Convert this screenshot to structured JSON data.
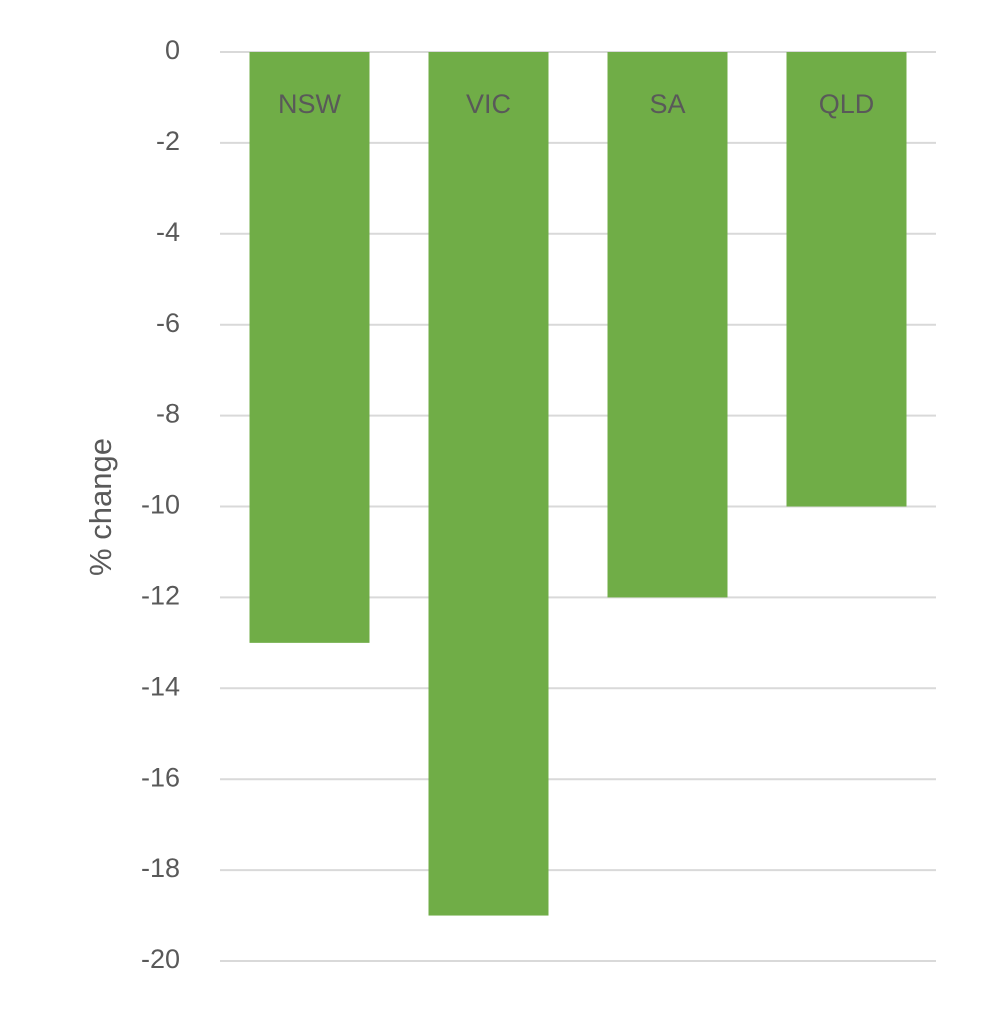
{
  "chart_data": {
    "type": "bar",
    "categories": [
      "NSW",
      "VIC",
      "SA",
      "QLD"
    ],
    "values": [
      -13,
      -19,
      -12,
      -10
    ],
    "title": "",
    "xlabel": "",
    "ylabel": "% change",
    "ylim": [
      -20,
      0
    ],
    "yticks": [
      0,
      -2,
      -4,
      -6,
      -8,
      -10,
      -12,
      -14,
      -16,
      -18,
      -20
    ],
    "grid": true,
    "legend": "none",
    "category_labels_position": "inside-top",
    "colors": {
      "bar": "#70ad47",
      "grid": "#d9d9d9",
      "text": "#595959"
    }
  }
}
